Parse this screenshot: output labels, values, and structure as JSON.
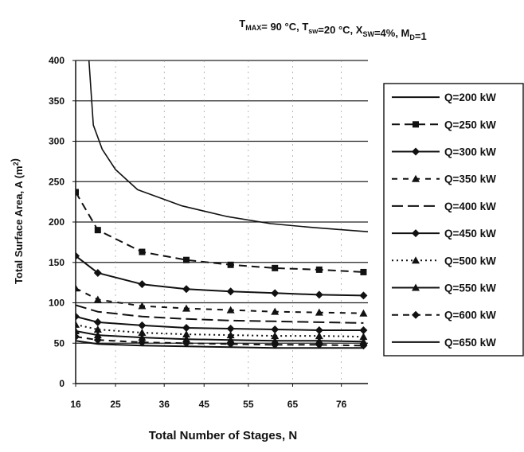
{
  "chart_data": {
    "type": "line",
    "title": "T<sub>MAX</sub>= 90 °C, T<sub>sw</sub>=20 °C, X<sub>SW</sub>=4%, M<sub>D</sub>=1",
    "title_parts": [
      {
        "t": "T",
        "s": "normal"
      },
      {
        "t": "MAX",
        "s": "sub"
      },
      {
        "t": "= 90 °C, T",
        "s": "normal"
      },
      {
        "t": "sw",
        "s": "sub"
      },
      {
        "t": "=20 °C, X",
        "s": "normal"
      },
      {
        "t": "SW",
        "s": "sub"
      },
      {
        "t": "=4%, M",
        "s": "normal"
      },
      {
        "t": "D",
        "s": "sub"
      },
      {
        "t": "=1",
        "s": "normal"
      }
    ],
    "xlabel": "Total Number of Stages, N",
    "ylabel_parts": [
      {
        "t": "Total Surface Area, A (m",
        "s": "normal"
      },
      {
        "t": "2",
        "s": "sup"
      },
      {
        "t": ")",
        "s": "normal"
      }
    ],
    "xlim": [
      16,
      82
    ],
    "ylim": [
      0,
      400
    ],
    "xticks": [
      16,
      25,
      36,
      45,
      55,
      65,
      76
    ],
    "xtick_labels": [
      "16",
      "25",
      "36",
      "45",
      "55",
      "65",
      "76"
    ],
    "yticks": [
      0,
      50,
      100,
      150,
      200,
      250,
      300,
      350,
      400
    ],
    "ytick_labels": [
      "0",
      "50",
      "100",
      "150",
      "200",
      "250",
      "300",
      "350",
      "400"
    ],
    "grid": "horizontal",
    "legend_position": "right",
    "series": [
      {
        "name": "Q=200 kW",
        "dash": "none",
        "marker": "none",
        "color": "#111111",
        "x": [
          19,
          20,
          22,
          25,
          30,
          40,
          50,
          60,
          70,
          82
        ],
        "y": [
          400,
          320,
          290,
          265,
          240,
          220,
          207,
          198,
          193,
          188
        ]
      },
      {
        "name": "Q=250 kW",
        "dash": "10,6",
        "marker": "square",
        "color": "#111111",
        "x": [
          16,
          21,
          31,
          41,
          51,
          61,
          71,
          81
        ],
        "y": [
          237,
          190,
          163,
          153,
          147,
          143,
          141,
          138
        ]
      },
      {
        "name": "Q=300 kW",
        "dash": "none",
        "marker": "diamond",
        "color": "#111111",
        "x": [
          16,
          21,
          31,
          41,
          51,
          61,
          71,
          81
        ],
        "y": [
          158,
          137,
          123,
          117,
          114,
          112,
          110,
          109
        ]
      },
      {
        "name": "Q=350 kW",
        "dash": "7,7",
        "marker": "triangle",
        "color": "#111111",
        "x": [
          16,
          21,
          31,
          41,
          51,
          61,
          71,
          81
        ],
        "y": [
          118,
          104,
          96,
          93,
          91,
          89,
          88,
          87
        ]
      },
      {
        "name": "Q=400 kW",
        "dash": "14,6",
        "marker": "none",
        "color": "#111111",
        "x": [
          16,
          21,
          31,
          41,
          51,
          61,
          71,
          81
        ],
        "y": [
          97,
          89,
          83,
          80,
          78,
          77,
          76,
          75
        ]
      },
      {
        "name": "Q=450 kW",
        "dash": "none",
        "marker": "diamond",
        "color": "#111111",
        "x": [
          16,
          21,
          31,
          41,
          51,
          61,
          71,
          81
        ],
        "y": [
          83,
          76,
          72,
          69,
          68,
          67,
          66,
          66
        ]
      },
      {
        "name": "Q=500 kW",
        "dash": "2,4",
        "marker": "triangle",
        "color": "#111111",
        "x": [
          16,
          21,
          31,
          41,
          51,
          61,
          71,
          81
        ],
        "y": [
          73,
          67,
          63,
          61,
          60,
          59,
          59,
          58
        ]
      },
      {
        "name": "Q=550 kW",
        "dash": "none",
        "marker": "triangle",
        "color": "#111111",
        "x": [
          16,
          21,
          31,
          41,
          51,
          61,
          71,
          81
        ],
        "y": [
          65,
          60,
          57,
          55,
          54,
          53,
          53,
          52
        ]
      },
      {
        "name": "Q=600 kW",
        "dash": "8,6",
        "marker": "diamond",
        "color": "#111111",
        "x": [
          16,
          21,
          31,
          41,
          51,
          61,
          71,
          81
        ],
        "y": [
          58,
          54,
          51,
          50,
          49,
          48,
          48,
          47
        ]
      },
      {
        "name": "Q=650 kW",
        "dash": "none",
        "marker": "none",
        "color": "#111111",
        "x": [
          16,
          21,
          31,
          41,
          51,
          61,
          71,
          81
        ],
        "y": [
          53,
          49,
          47,
          46,
          45,
          44,
          44,
          44
        ]
      }
    ]
  }
}
